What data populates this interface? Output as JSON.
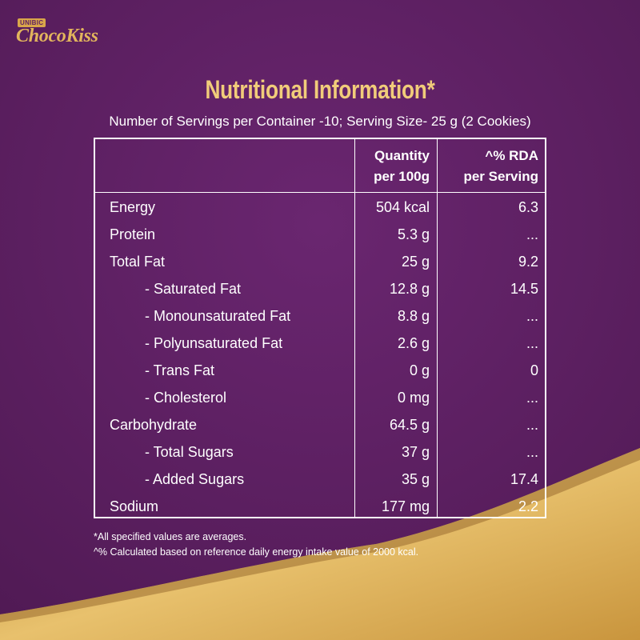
{
  "brand": {
    "small": "UNIBIC",
    "name": "ChocoKiss"
  },
  "title": "Nutritional Information*",
  "subtitle": "Number of Servings per Container -10; Serving Size- 25 g (2 Cookies)",
  "table": {
    "headers": {
      "qty_line1": "Quantity",
      "qty_line2": "per 100g",
      "rda_line1": "^% RDA",
      "rda_line2": "per Serving"
    },
    "rows": [
      {
        "name": "Energy",
        "qty": "504 kcal",
        "rda": "6.3"
      },
      {
        "name": "Protein",
        "qty": "5.3 g",
        "rda": "..."
      },
      {
        "name": "Total Fat",
        "qty": "25 g",
        "rda": "9.2"
      },
      {
        "name": "- Saturated Fat",
        "qty": "12.8 g",
        "rda": "14.5"
      },
      {
        "name": "- Monounsaturated Fat",
        "qty": "8.8 g",
        "rda": "..."
      },
      {
        "name": "- Polyunsaturated Fat",
        "qty": "2.6 g",
        "rda": "..."
      },
      {
        "name": "- Trans Fat",
        "qty": "0 g",
        "rda": "0"
      },
      {
        "name": "- Cholesterol",
        "qty": "0 mg",
        "rda": "..."
      },
      {
        "name": "Carbohydrate",
        "qty": "64.5 g",
        "rda": "..."
      },
      {
        "name": "- Total Sugars",
        "qty": "37 g",
        "rda": "..."
      },
      {
        "name": "- Added Sugars",
        "qty": "35 g",
        "rda": "17.4"
      },
      {
        "name": "Sodium",
        "qty": "177 mg",
        "rda": "2.2"
      }
    ]
  },
  "footnotes": [
    "*All specified values are averages.",
    "^% Calculated based on reference daily energy intake value of 2000 kcal."
  ],
  "colors": {
    "background": "#5f2262",
    "gold": "#d9a64a",
    "title": "#f1cc7a"
  }
}
